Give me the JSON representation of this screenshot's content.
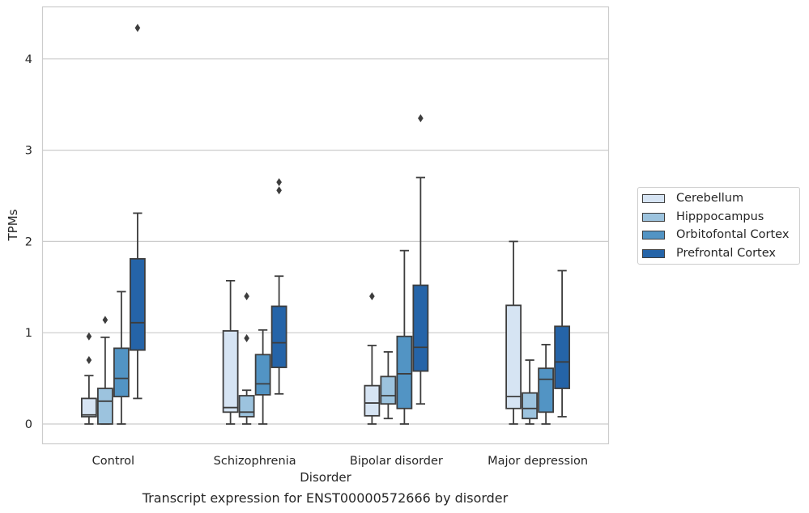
{
  "caption": "Transcript expression for ENST00000572666 by disorder",
  "legend": {
    "items": [
      {
        "label": "Cerebellum",
        "color": "#d6e4f3"
      },
      {
        "label": "Hipppocampus",
        "color": "#9cc3de"
      },
      {
        "label": "Orbitofontal Cortex",
        "color": "#5294c4"
      },
      {
        "label": "Prefrontal Cortex",
        "color": "#2564a8"
      }
    ],
    "placement": "right-center, outside plot"
  },
  "chart_data": {
    "type": "box",
    "xlabel": "Disorder",
    "ylabel": "TPMs",
    "ylim": [
      -0.2,
      4.55
    ],
    "yticks": [
      0,
      1,
      2,
      3,
      4
    ],
    "grid": "horizontal",
    "categories": [
      "Control",
      "Schizophrenia",
      "Bipolar disorder",
      "Major depression"
    ],
    "series": [
      {
        "name": "Cerebellum",
        "color": "#d6e4f3",
        "boxes": [
          {
            "whislo": 0.0,
            "q1": 0.08,
            "med": 0.1,
            "q3": 0.28,
            "whishi": 0.53,
            "fliers": [
              0.7,
              0.96
            ]
          },
          {
            "whislo": 0.0,
            "q1": 0.13,
            "med": 0.18,
            "q3": 1.02,
            "whishi": 1.57,
            "fliers": []
          },
          {
            "whislo": 0.0,
            "q1": 0.09,
            "med": 0.23,
            "q3": 0.42,
            "whishi": 0.86,
            "fliers": [
              1.4
            ]
          },
          {
            "whislo": 0.0,
            "q1": 0.17,
            "med": 0.3,
            "q3": 1.3,
            "whishi": 2.0,
            "fliers": []
          }
        ]
      },
      {
        "name": "Hipppocampus",
        "color": "#9cc3de",
        "boxes": [
          {
            "whislo": 0.0,
            "q1": 0.0,
            "med": 0.25,
            "q3": 0.39,
            "whishi": 0.95,
            "fliers": [
              1.14
            ]
          },
          {
            "whislo": 0.0,
            "q1": 0.08,
            "med": 0.13,
            "q3": 0.31,
            "whishi": 0.37,
            "fliers": [
              0.94,
              1.4
            ]
          },
          {
            "whislo": 0.06,
            "q1": 0.22,
            "med": 0.31,
            "q3": 0.52,
            "whishi": 0.79,
            "fliers": []
          },
          {
            "whislo": 0.0,
            "q1": 0.06,
            "med": 0.17,
            "q3": 0.34,
            "whishi": 0.7,
            "fliers": []
          }
        ]
      },
      {
        "name": "Orbitofontal Cortex",
        "color": "#5294c4",
        "boxes": [
          {
            "whislo": 0.0,
            "q1": 0.3,
            "med": 0.5,
            "q3": 0.83,
            "whishi": 1.45,
            "fliers": []
          },
          {
            "whislo": 0.0,
            "q1": 0.32,
            "med": 0.44,
            "q3": 0.76,
            "whishi": 1.03,
            "fliers": []
          },
          {
            "whislo": 0.0,
            "q1": 0.17,
            "med": 0.55,
            "q3": 0.96,
            "whishi": 1.9,
            "fliers": []
          },
          {
            "whislo": 0.0,
            "q1": 0.13,
            "med": 0.49,
            "q3": 0.61,
            "whishi": 0.87,
            "fliers": []
          }
        ]
      },
      {
        "name": "Prefrontal Cortex",
        "color": "#2564a8",
        "boxes": [
          {
            "whislo": 0.28,
            "q1": 0.81,
            "med": 1.11,
            "q3": 1.81,
            "whishi": 2.31,
            "fliers": [
              4.34
            ]
          },
          {
            "whislo": 0.33,
            "q1": 0.62,
            "med": 0.89,
            "q3": 1.29,
            "whishi": 1.62,
            "fliers": [
              2.56,
              2.65
            ]
          },
          {
            "whislo": 0.22,
            "q1": 0.58,
            "med": 0.84,
            "q3": 1.52,
            "whishi": 2.7,
            "fliers": [
              3.35
            ]
          },
          {
            "whislo": 0.08,
            "q1": 0.39,
            "med": 0.68,
            "q3": 1.07,
            "whishi": 1.68,
            "fliers": []
          }
        ]
      }
    ]
  }
}
